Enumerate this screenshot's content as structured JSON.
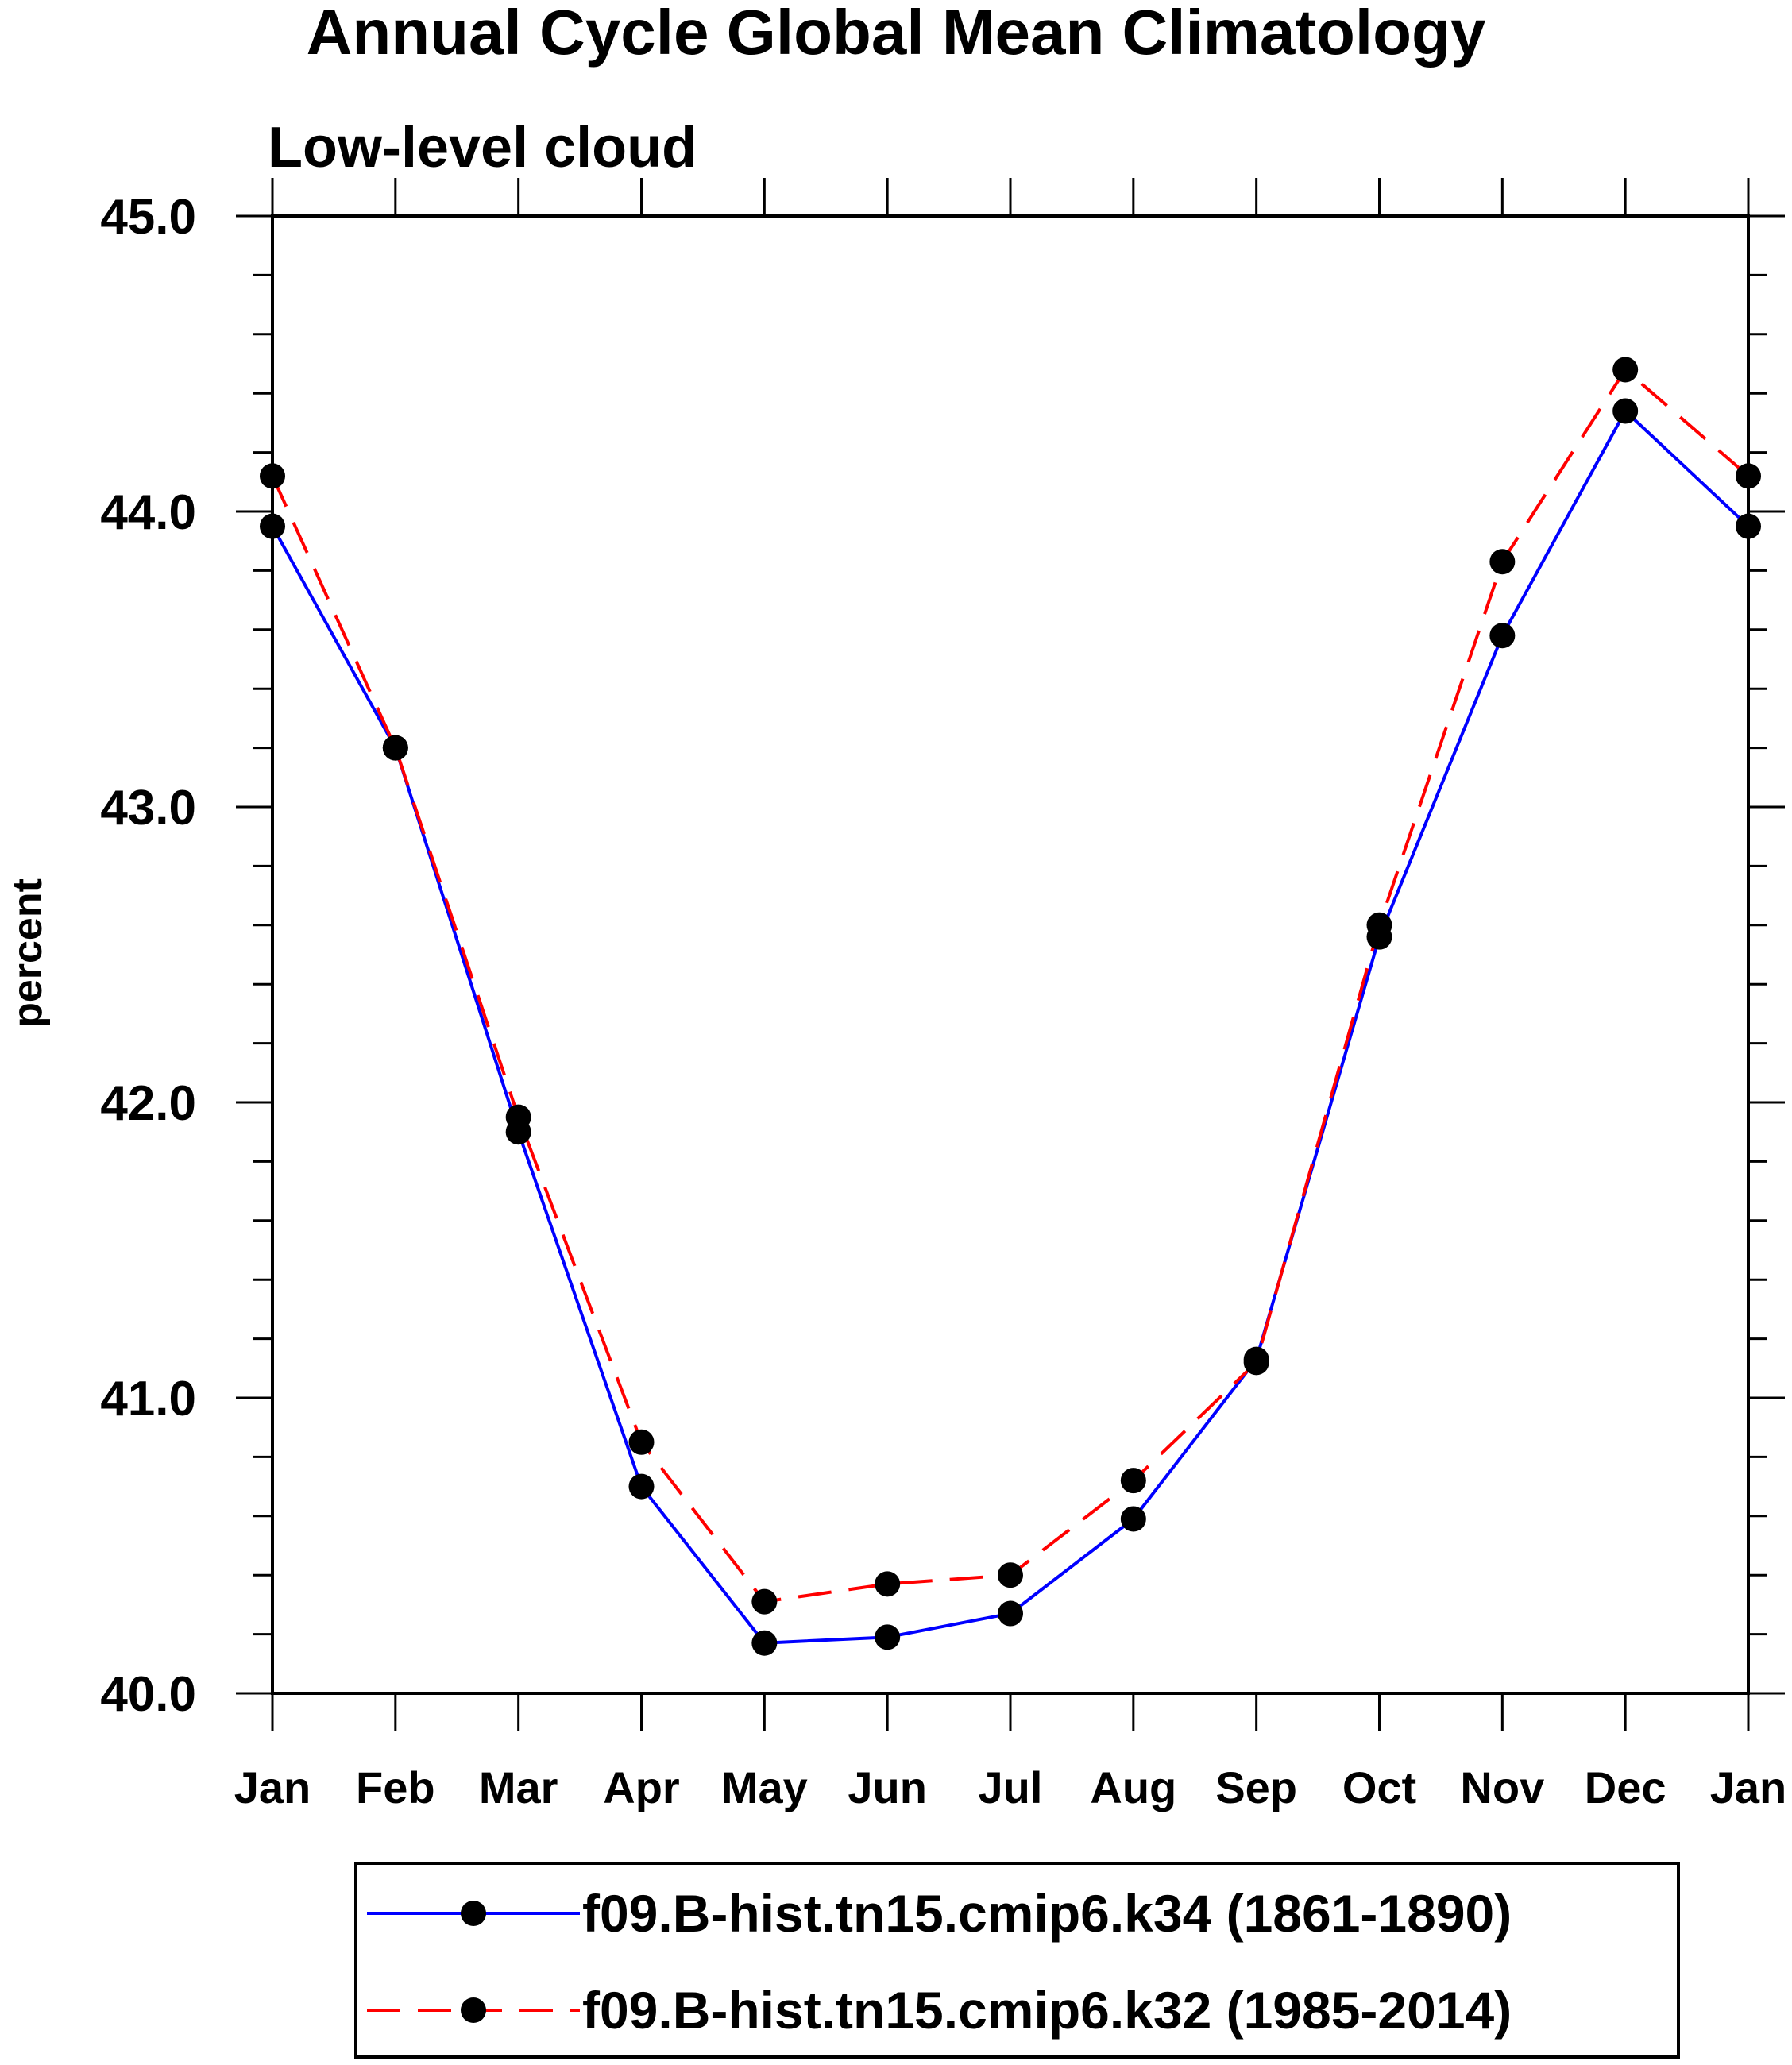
{
  "chart_data": {
    "type": "line",
    "title": "Annual Cycle Global Mean Climatology",
    "subtitle": "Low-level cloud",
    "xlabel": "",
    "ylabel": "percent",
    "categories": [
      "Jan",
      "Feb",
      "Mar",
      "Apr",
      "May",
      "Jun",
      "Jul",
      "Aug",
      "Sep",
      "Oct",
      "Nov",
      "Dec",
      "Jan"
    ],
    "ylim": [
      40.0,
      45.0
    ],
    "yticks": [
      "40.0",
      "41.0",
      "42.0",
      "43.0",
      "44.0",
      "45.0"
    ],
    "grid": false,
    "legend_position": "bottom",
    "series": [
      {
        "name": "f09.B-hist.tn15.cmip6.k34 (1861-1890)",
        "color": "#0000ff",
        "dash": "solid",
        "marker": "filled-circle",
        "values": [
          43.95,
          43.2,
          41.9,
          40.7,
          40.17,
          40.19,
          40.27,
          40.59,
          41.13,
          42.56,
          43.58,
          44.34,
          43.95
        ]
      },
      {
        "name": "f09.B-hist.tn15.cmip6.k32 (1985-2014)",
        "color": "#ff0000",
        "dash": "dashed",
        "marker": "filled-circle",
        "values": [
          44.12,
          43.2,
          41.95,
          40.85,
          40.31,
          40.37,
          40.4,
          40.72,
          41.12,
          42.6,
          43.83,
          44.48,
          44.12
        ]
      }
    ]
  }
}
